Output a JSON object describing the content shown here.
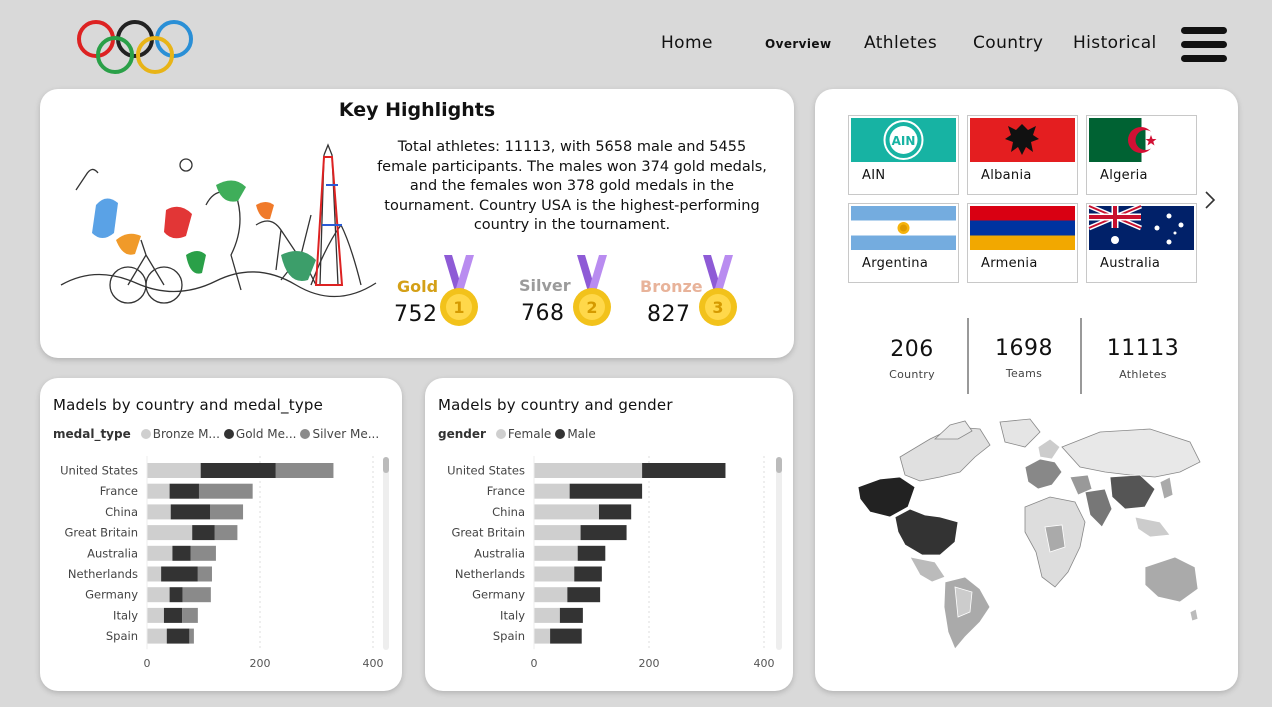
{
  "nav": {
    "home": "Home",
    "overview": "Overview",
    "athletes": "Athletes",
    "country": "Country",
    "historical": "Historical"
  },
  "highlights": {
    "title": "Key Highlights",
    "text": "Total athletes: 11113, with 5658 male and 5455 female participants. The males won 374 gold medals, and the females won 378 gold medals in the tournament. Country USA is the highest-performing country in the tournament.",
    "gold_label": "Gold",
    "gold_value": "752",
    "silver_label": "Silver",
    "silver_value": "768",
    "bronze_label": "Bronze",
    "bronze_value": "827",
    "medal_1": "1",
    "medal_2": "2",
    "medal_3": "3"
  },
  "flags": [
    {
      "name": "AIN",
      "badge": "AIN"
    },
    {
      "name": "Albania"
    },
    {
      "name": "Algeria"
    },
    {
      "name": "Argentina"
    },
    {
      "name": "Armenia"
    },
    {
      "name": "Australia"
    }
  ],
  "stats": [
    {
      "value": "206",
      "label": "Country"
    },
    {
      "value": "1698",
      "label": "Teams"
    },
    {
      "value": "11113",
      "label": "Athletes"
    }
  ],
  "colors": {
    "bronze_bar": "#cfcfcf",
    "gold_bar": "#333333",
    "silver_bar": "#8a8a8a",
    "female_bar": "#cfcfcf",
    "male_bar": "#333333",
    "gold_text": "#d4a017",
    "silver_text": "#9b9b9b",
    "bronze_text": "#e8b39a"
  },
  "chart_data": [
    {
      "type": "bar",
      "orientation": "horizontal-stacked",
      "title": "Madels by country and medal_type",
      "legend_title": "medal_type",
      "categories": [
        "United States",
        "France",
        "China",
        "Great Britain",
        "Australia",
        "Netherlands",
        "Germany",
        "Italy",
        "Spain"
      ],
      "series": [
        {
          "name": "Bronze M...",
          "values": [
            95,
            40,
            42,
            80,
            45,
            25,
            40,
            30,
            35
          ]
        },
        {
          "name": "Gold Me...",
          "values": [
            133,
            52,
            70,
            40,
            32,
            65,
            23,
            32,
            40
          ]
        },
        {
          "name": "Silver Me...",
          "values": [
            102,
            95,
            58,
            40,
            45,
            25,
            50,
            28,
            8
          ]
        }
      ],
      "xticks": [
        "0",
        "200",
        "400"
      ],
      "xlim": [
        0,
        400
      ]
    },
    {
      "type": "bar",
      "orientation": "horizontal-stacked",
      "title": "Madels by country and gender",
      "legend_title": "gender",
      "categories": [
        "United States",
        "France",
        "China",
        "Great Britain",
        "Australia",
        "Netherlands",
        "Germany",
        "Italy",
        "Spain"
      ],
      "series": [
        {
          "name": "Female",
          "values": [
            188,
            62,
            113,
            81,
            76,
            70,
            58,
            45,
            28
          ]
        },
        {
          "name": "Male",
          "values": [
            145,
            126,
            56,
            80,
            48,
            48,
            57,
            40,
            55
          ]
        }
      ],
      "xticks": [
        "0",
        "200",
        "400"
      ],
      "xlim": [
        0,
        400
      ]
    }
  ]
}
